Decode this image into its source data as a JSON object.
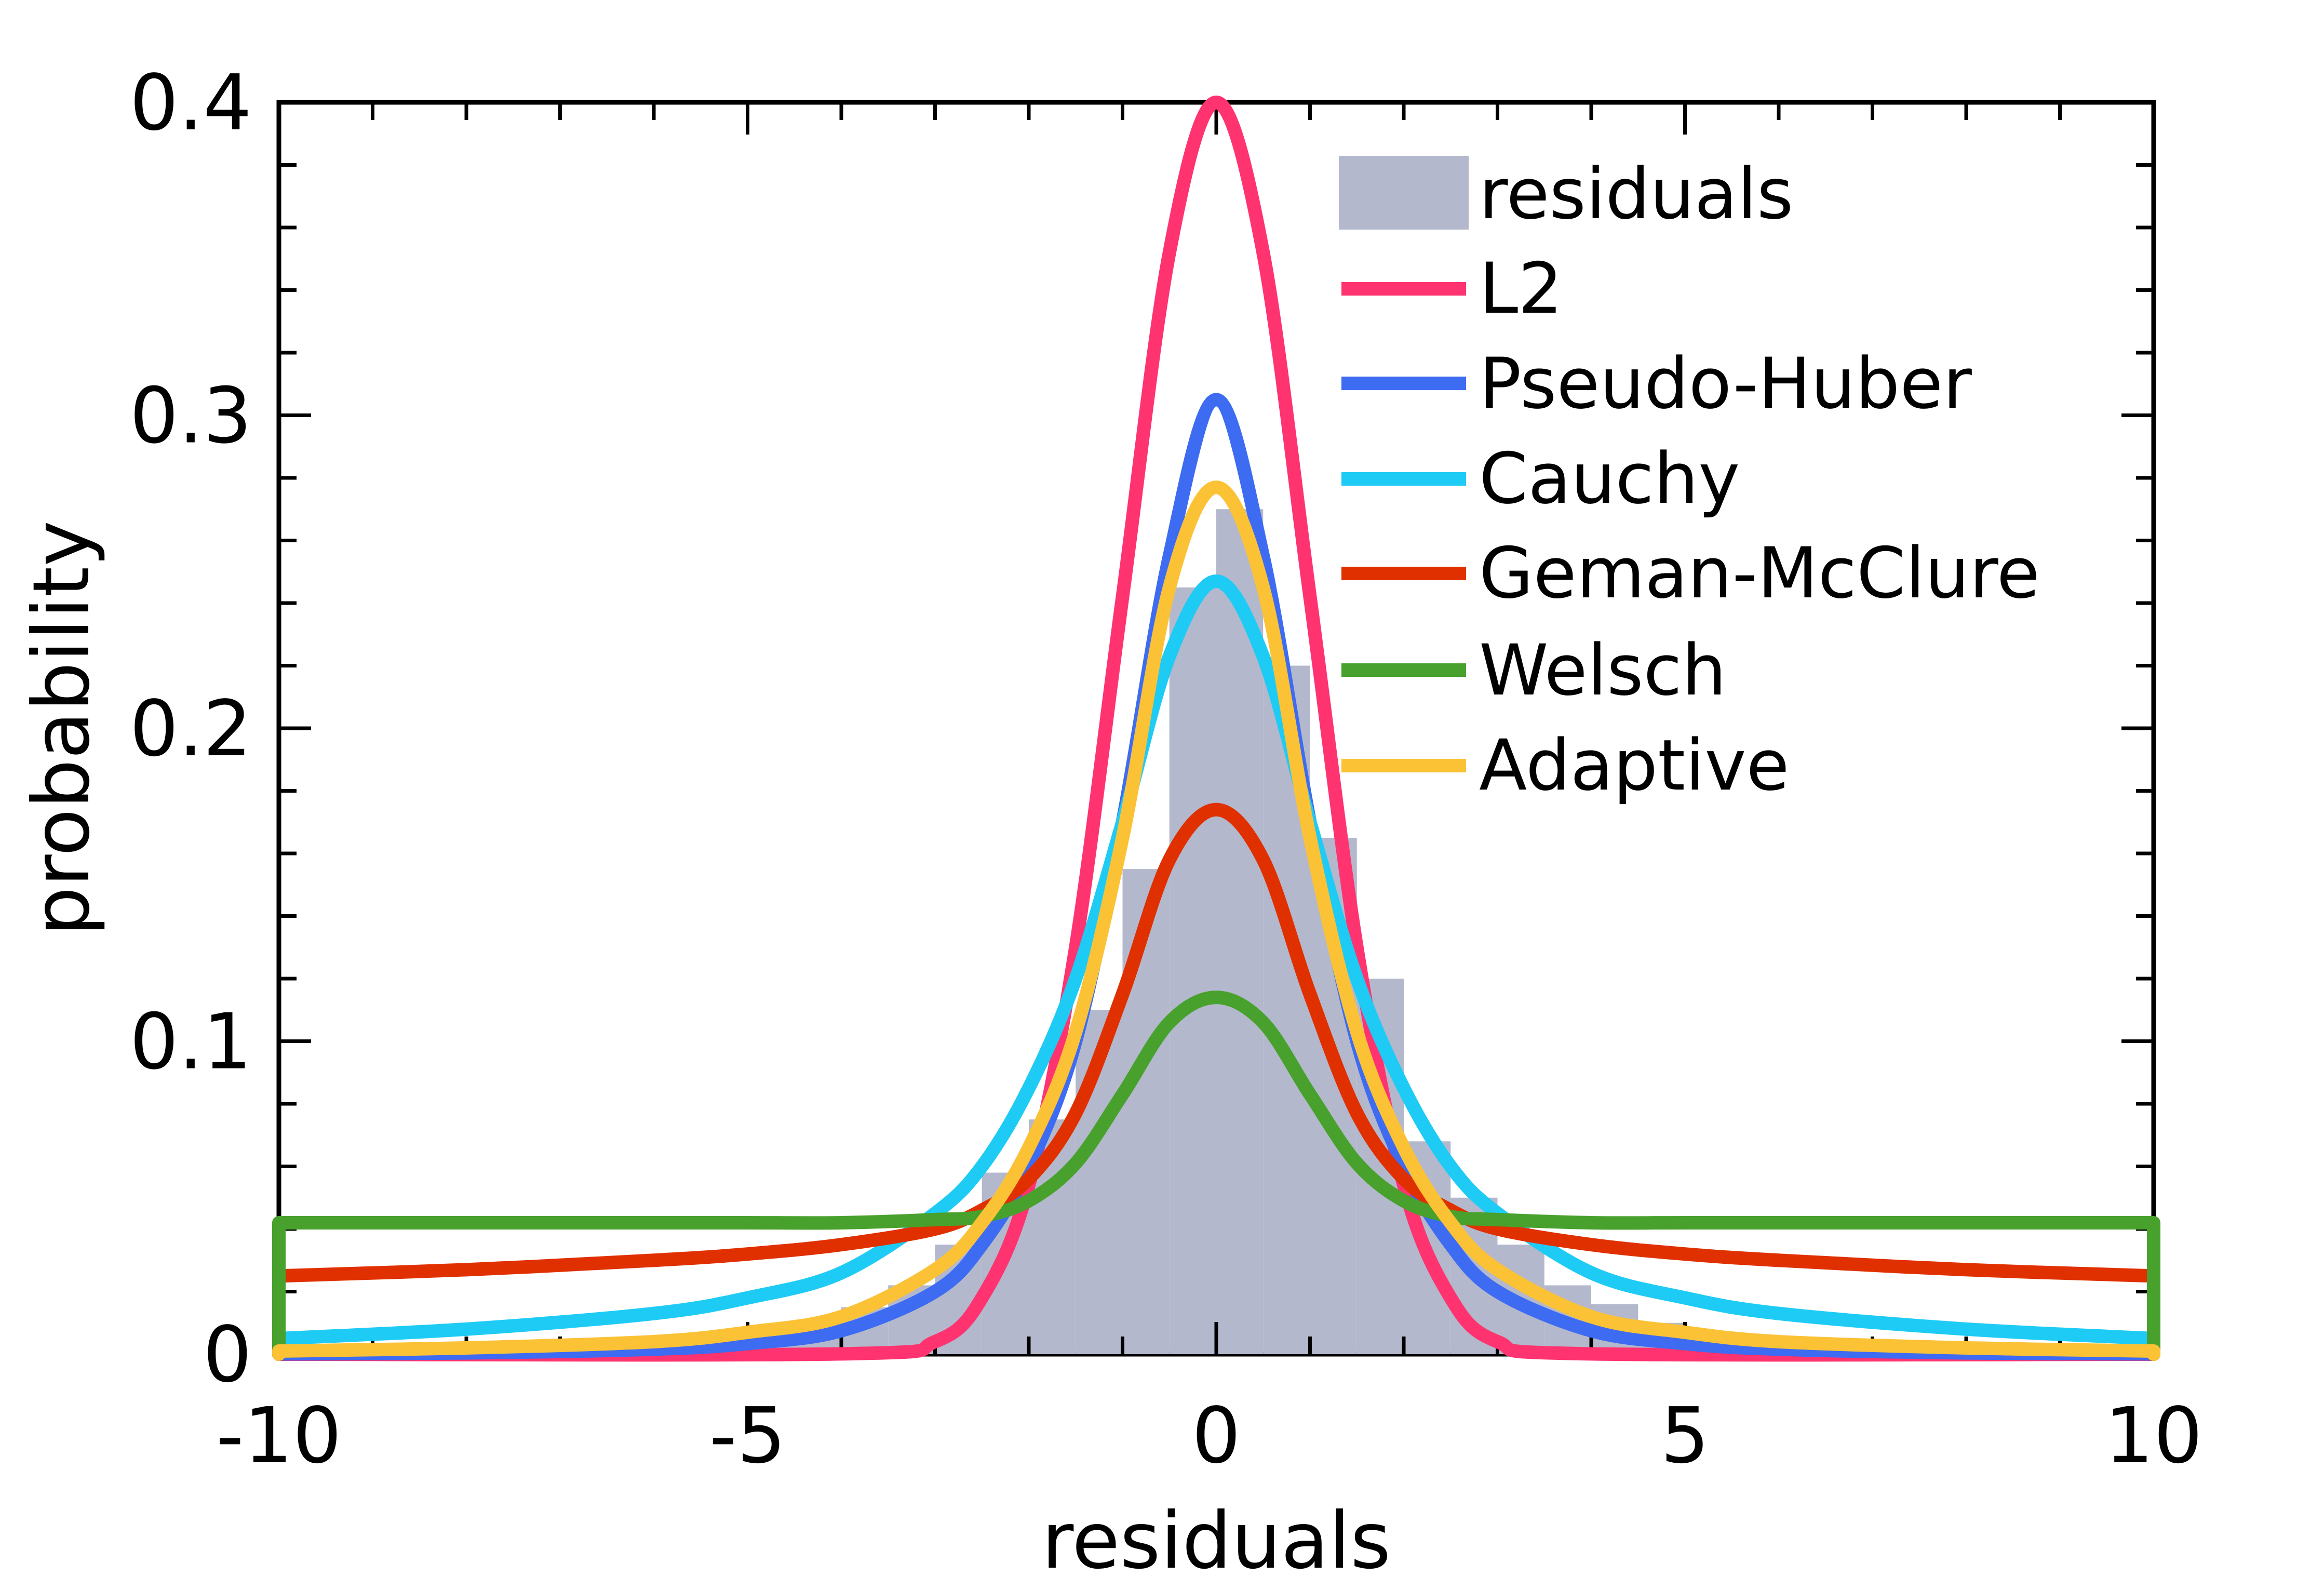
{
  "chart_data": {
    "type": "line",
    "title": "",
    "xlabel": "residuals",
    "ylabel": "probability",
    "xlim": [
      -10,
      10
    ],
    "ylim": [
      0,
      0.4
    ],
    "x_ticks": [
      -10,
      -5,
      0,
      5,
      10
    ],
    "x_tick_labels": [
      "-10",
      "-5",
      "0",
      "5",
      "10"
    ],
    "y_ticks": [
      0,
      0.1,
      0.2,
      0.3,
      0.4
    ],
    "y_tick_labels": [
      "0",
      "0.1",
      "0.2",
      "0.3",
      "0.4"
    ],
    "legend_position": "top-right",
    "histogram": {
      "name": "residuals",
      "color": "#b3b8cc",
      "bin_width": 0.5,
      "bins": [
        {
          "x0": -5.0,
          "value": 0.008
        },
        {
          "x0": -4.5,
          "value": 0.011
        },
        {
          "x0": -4.0,
          "value": 0.015
        },
        {
          "x0": -3.5,
          "value": 0.022
        },
        {
          "x0": -3.0,
          "value": 0.035
        },
        {
          "x0": -2.5,
          "value": 0.058
        },
        {
          "x0": -2.0,
          "value": 0.075
        },
        {
          "x0": -1.5,
          "value": 0.11
        },
        {
          "x0": -1.0,
          "value": 0.155
        },
        {
          "x0": -0.5,
          "value": 0.245
        },
        {
          "x0": 0.0,
          "value": 0.27
        },
        {
          "x0": 0.5,
          "value": 0.22
        },
        {
          "x0": 1.0,
          "value": 0.165
        },
        {
          "x0": 1.5,
          "value": 0.12
        },
        {
          "x0": 2.0,
          "value": 0.068
        },
        {
          "x0": 2.5,
          "value": 0.05
        },
        {
          "x0": 3.0,
          "value": 0.035
        },
        {
          "x0": 3.5,
          "value": 0.022
        },
        {
          "x0": 4.0,
          "value": 0.016
        },
        {
          "x0": 4.5,
          "value": 0.01
        }
      ]
    },
    "series": [
      {
        "name": "L2",
        "color": "#ff3370",
        "peak": 0.4,
        "x": [
          -10,
          -4,
          -3,
          -2.5,
          -2,
          -1.5,
          -1,
          -0.5,
          0,
          0.5,
          1,
          1.5,
          2,
          2.5,
          3,
          4,
          10
        ],
        "y": [
          0,
          0.0001,
          0.004,
          0.018,
          0.054,
          0.13,
          0.242,
          0.352,
          0.4,
          0.352,
          0.242,
          0.13,
          0.054,
          0.018,
          0.004,
          0.0001,
          0
        ]
      },
      {
        "name": "Pseudo-Huber",
        "color": "#3d6bf2",
        "peak": 0.305,
        "x": [
          -10,
          -8,
          -6,
          -5,
          -4,
          -3,
          -2.5,
          -2,
          -1.5,
          -1,
          -0.5,
          0,
          0.5,
          1,
          1.5,
          2,
          2.5,
          3,
          4,
          5,
          6,
          8,
          10
        ],
        "y": [
          0.0001,
          0.0004,
          0.0016,
          0.0034,
          0.0075,
          0.02,
          0.035,
          0.06,
          0.1,
          0.17,
          0.255,
          0.305,
          0.255,
          0.17,
          0.1,
          0.06,
          0.035,
          0.02,
          0.0075,
          0.0034,
          0.0016,
          0.0004,
          0.0001
        ]
      },
      {
        "name": "Cauchy",
        "color": "#1ecbf5",
        "peak": 0.247,
        "x": [
          -10,
          -8,
          -6,
          -5,
          -4,
          -3,
          -2.5,
          -2,
          -1.5,
          -1,
          -0.5,
          0,
          0.5,
          1,
          1.5,
          2,
          2.5,
          3,
          4,
          5,
          6,
          8,
          10
        ],
        "y": [
          0.005,
          0.008,
          0.013,
          0.018,
          0.026,
          0.045,
          0.06,
          0.085,
          0.12,
          0.17,
          0.223,
          0.247,
          0.223,
          0.17,
          0.12,
          0.085,
          0.06,
          0.045,
          0.026,
          0.018,
          0.013,
          0.008,
          0.005
        ]
      },
      {
        "name": "Geman-McClure",
        "color": "#e03000",
        "peak": 0.174,
        "x": [
          -10,
          -8,
          -6,
          -5,
          -4,
          -3,
          -2.5,
          -2,
          -1.5,
          -1,
          -0.5,
          0,
          0.5,
          1,
          1.5,
          2,
          2.5,
          3,
          4,
          5,
          6,
          8,
          10
        ],
        "y": [
          0.025,
          0.027,
          0.03,
          0.032,
          0.035,
          0.04,
          0.046,
          0.056,
          0.077,
          0.115,
          0.158,
          0.174,
          0.158,
          0.115,
          0.077,
          0.056,
          0.046,
          0.04,
          0.035,
          0.032,
          0.03,
          0.027,
          0.025
        ]
      },
      {
        "name": "Welsch",
        "color": "#48a12c",
        "peak": 0.114,
        "x": [
          -10,
          -8,
          -6,
          -5,
          -4,
          -3,
          -2.5,
          -2,
          -1.5,
          -1,
          -0.5,
          0,
          0.5,
          1,
          1.5,
          2,
          2.5,
          3,
          4,
          5,
          6,
          8,
          10
        ],
        "y": [
          0.042,
          0.042,
          0.042,
          0.042,
          0.042,
          0.043,
          0.044,
          0.049,
          0.061,
          0.083,
          0.106,
          0.114,
          0.106,
          0.083,
          0.061,
          0.049,
          0.044,
          0.043,
          0.042,
          0.042,
          0.042,
          0.042,
          0.042
        ]
      },
      {
        "name": "Adaptive",
        "color": "#fbc236",
        "peak": 0.277,
        "x": [
          -10,
          -8,
          -6,
          -5,
          -4,
          -3,
          -2.5,
          -2,
          -1.5,
          -1,
          -0.5,
          0,
          0.5,
          1,
          1.5,
          2,
          2.5,
          3,
          4,
          5,
          6,
          8,
          10
        ],
        "y": [
          0.001,
          0.002,
          0.004,
          0.007,
          0.012,
          0.027,
          0.042,
          0.066,
          0.103,
          0.165,
          0.245,
          0.277,
          0.245,
          0.165,
          0.103,
          0.066,
          0.042,
          0.027,
          0.012,
          0.007,
          0.004,
          0.002,
          0.001
        ]
      }
    ]
  }
}
